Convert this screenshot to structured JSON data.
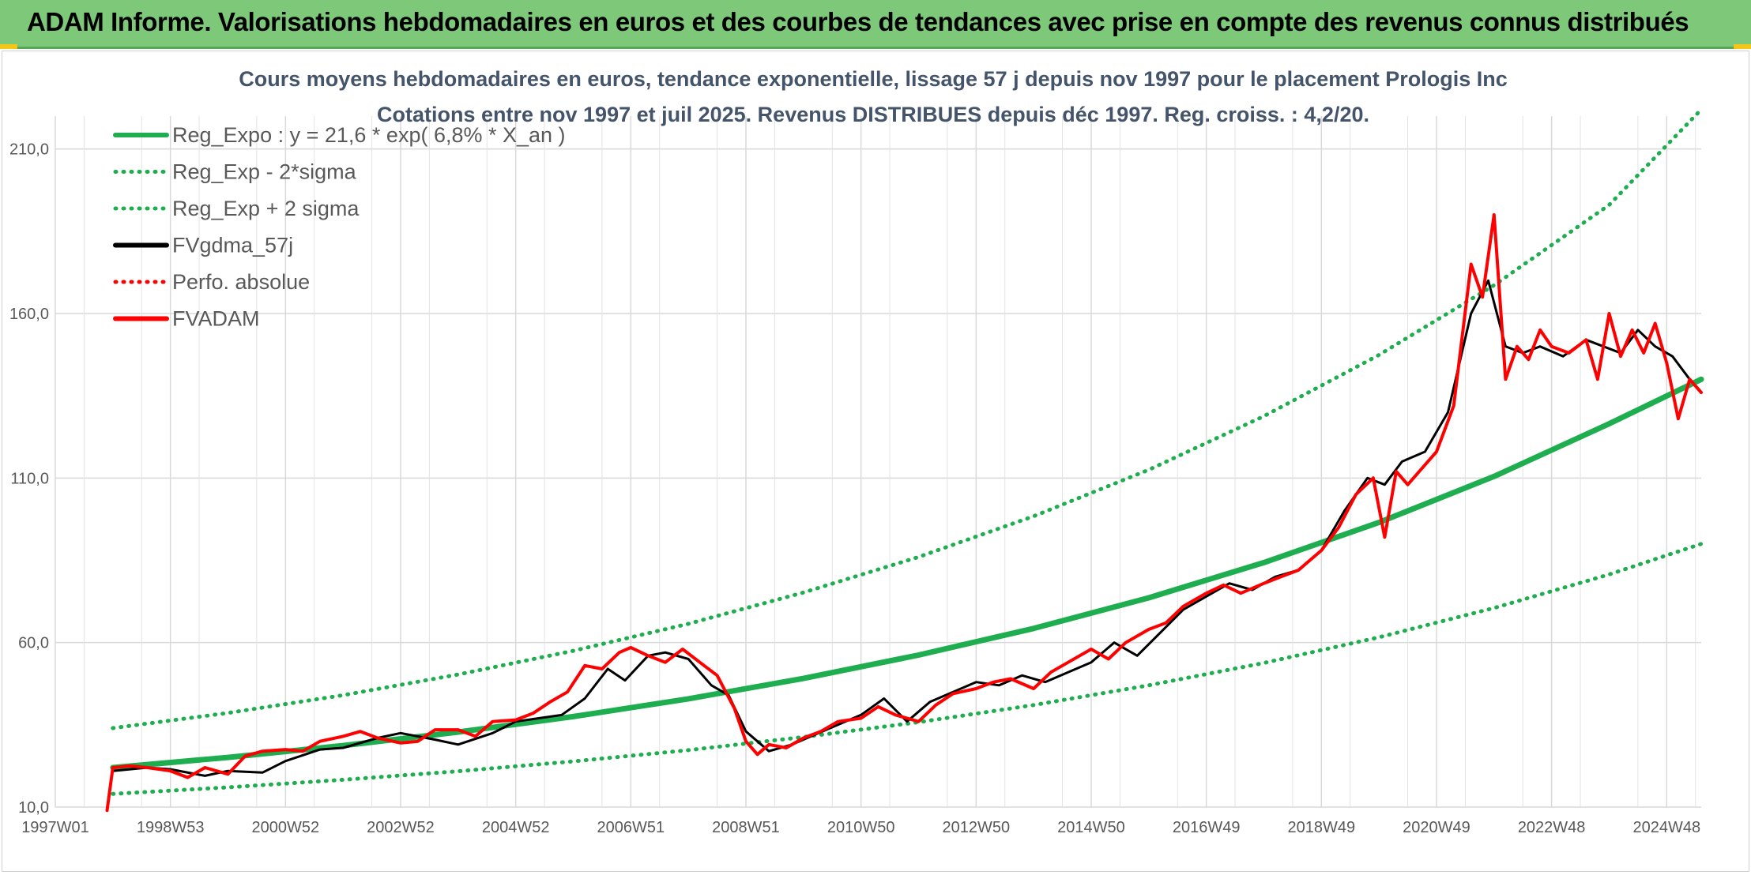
{
  "header": {
    "title": "ADAM Informe. Valorisations hebdomadaires en euros et des courbes de tendances avec prise en compte des revenus connus distribués"
  },
  "chart_data": {
    "type": "line",
    "title": "Cours moyens hebdomadaires en euros, tendance exponentielle, lissage 57 j depuis nov 1997 pour le placement Prologis Inc",
    "subtitle": "Cotations entre nov 1997 et juil 2025. Revenus DISTRIBUES depuis déc 1997. Reg. croiss. : 4,2/20.",
    "xlabel": "",
    "ylabel": "",
    "x_range": [
      1997.0,
      2025.6
    ],
    "ylim": [
      10,
      210
    ],
    "y_ticks": [
      "10,0",
      "60,0",
      "110,0",
      "160,0",
      "210,0"
    ],
    "x_ticks": [
      {
        "label": "1997W01",
        "x": 1997.0
      },
      {
        "label": "1998W53",
        "x": 1999.0
      },
      {
        "label": "2000W52",
        "x": 2001.0
      },
      {
        "label": "2002W52",
        "x": 2003.0
      },
      {
        "label": "2004W52",
        "x": 2005.0
      },
      {
        "label": "2006W51",
        "x": 2007.0
      },
      {
        "label": "2008W51",
        "x": 2009.0
      },
      {
        "label": "2010W50",
        "x": 2011.0
      },
      {
        "label": "2012W50",
        "x": 2013.0
      },
      {
        "label": "2014W50",
        "x": 2015.0
      },
      {
        "label": "2016W49",
        "x": 2017.0
      },
      {
        "label": "2018W49",
        "x": 2019.0
      },
      {
        "label": "2020W49",
        "x": 2021.0
      },
      {
        "label": "2022W48",
        "x": 2023.0
      },
      {
        "label": "2024W48",
        "x": 2025.0
      }
    ],
    "grid": true,
    "legend_position": "top-left",
    "series": [
      {
        "name": "Reg_Expo : y = 21,6 * exp( 6,8% *  X_an )",
        "color": "#1fae4f",
        "style": "solid",
        "x": [
          1998.0,
          2000.0,
          2002.0,
          2004.0,
          2006.0,
          2008.0,
          2010.0,
          2012.0,
          2014.0,
          2016.0,
          2018.0,
          2020.0,
          2022.0,
          2024.0,
          2025.6
        ],
        "values": [
          22.0,
          25.1,
          28.7,
          32.8,
          37.5,
          42.9,
          49.1,
          56.2,
          64.3,
          73.6,
          84.3,
          96.5,
          110.5,
          126.5,
          140.0
        ]
      },
      {
        "name": "Reg_Exp - 2*sigma",
        "color": "#1fae4f",
        "style": "dotted",
        "x": [
          1998.0,
          2000.0,
          2002.0,
          2004.0,
          2006.0,
          2008.0,
          2010.0,
          2012.0,
          2014.0,
          2016.0,
          2018.0,
          2020.0,
          2022.0,
          2024.0,
          2025.6
        ],
        "values": [
          14.0,
          16.0,
          18.3,
          20.9,
          23.9,
          27.3,
          31.3,
          35.8,
          41.0,
          47.0,
          53.8,
          61.6,
          70.5,
          80.7,
          90.0
        ]
      },
      {
        "name": "Reg_Exp + 2 sigma",
        "color": "#1fae4f",
        "style": "dotted",
        "x": [
          1998.0,
          2000.0,
          2002.0,
          2004.0,
          2006.0,
          2008.0,
          2010.0,
          2012.0,
          2014.0,
          2016.0,
          2018.0,
          2020.0,
          2022.0,
          2024.0,
          2025.6
        ],
        "values": [
          34.0,
          38.6,
          44.0,
          50.3,
          57.5,
          65.7,
          75.2,
          86.0,
          98.4,
          112.5,
          128.8,
          147.4,
          168.6,
          193.0,
          222.0
        ]
      },
      {
        "name": "FVgdma_57j",
        "color": "#000000",
        "style": "solid",
        "x": [
          1998.0,
          1998.6,
          1999.0,
          1999.6,
          2000.0,
          2000.6,
          2001.0,
          2001.6,
          2002.0,
          2002.6,
          2003.0,
          2003.6,
          2004.0,
          2004.6,
          2005.0,
          2005.4,
          2005.8,
          2006.2,
          2006.6,
          2006.9,
          2007.3,
          2007.6,
          2008.0,
          2008.4,
          2008.7,
          2009.0,
          2009.4,
          2009.8,
          2010.2,
          2010.6,
          2011.0,
          2011.4,
          2011.8,
          2012.2,
          2012.6,
          2013.0,
          2013.4,
          2013.8,
          2014.2,
          2014.6,
          2015.0,
          2015.4,
          2015.8,
          2016.2,
          2016.6,
          2017.0,
          2017.4,
          2017.8,
          2018.2,
          2018.6,
          2019.0,
          2019.4,
          2019.8,
          2020.1,
          2020.4,
          2020.8,
          2021.2,
          2021.6,
          2021.9,
          2022.2,
          2022.5,
          2022.8,
          2023.2,
          2023.6,
          2023.9,
          2024.2,
          2024.5,
          2024.8,
          2025.1,
          2025.4,
          2025.6
        ],
        "values": [
          21.0,
          22.0,
          21.5,
          19.5,
          21.0,
          20.5,
          24.0,
          27.5,
          28.0,
          31.0,
          32.5,
          30.5,
          29.0,
          32.5,
          36.0,
          37.0,
          38.0,
          43.0,
          52.0,
          48.5,
          56.0,
          57.0,
          55.0,
          47.0,
          44.0,
          33.0,
          27.0,
          29.0,
          32.0,
          35.0,
          38.0,
          43.0,
          36.0,
          42.0,
          45.0,
          48.0,
          47.0,
          50.0,
          48.0,
          51.0,
          54.0,
          60.0,
          56.0,
          63.0,
          70.0,
          74.0,
          78.0,
          76.0,
          80.0,
          82.0,
          88.0,
          100.0,
          110.0,
          108.0,
          115.0,
          118.0,
          130.0,
          160.0,
          170.0,
          150.0,
          148.0,
          150.0,
          147.0,
          152.0,
          150.0,
          148.0,
          155.0,
          150.0,
          147.0,
          140.0,
          136.0
        ]
      },
      {
        "name": "Perfo. absolue",
        "color": "#ff0000",
        "style": "dotted",
        "x": [],
        "values": []
      },
      {
        "name": "FVADAM",
        "color": "#ff0000",
        "style": "solid",
        "x": [
          1997.9,
          1998.0,
          1998.3,
          1998.6,
          1999.0,
          1999.3,
          1999.6,
          2000.0,
          2000.3,
          2000.6,
          2001.0,
          2001.3,
          2001.6,
          2002.0,
          2002.3,
          2002.6,
          2003.0,
          2003.3,
          2003.6,
          2004.0,
          2004.3,
          2004.6,
          2005.0,
          2005.3,
          2005.6,
          2005.9,
          2006.2,
          2006.5,
          2006.8,
          2007.0,
          2007.3,
          2007.6,
          2007.9,
          2008.2,
          2008.5,
          2008.8,
          2009.0,
          2009.2,
          2009.4,
          2009.7,
          2010.0,
          2010.3,
          2010.6,
          2011.0,
          2011.3,
          2011.6,
          2012.0,
          2012.3,
          2012.6,
          2013.0,
          2013.3,
          2013.6,
          2014.0,
          2014.3,
          2014.6,
          2015.0,
          2015.3,
          2015.6,
          2016.0,
          2016.3,
          2016.6,
          2017.0,
          2017.3,
          2017.6,
          2018.0,
          2018.3,
          2018.6,
          2019.0,
          2019.3,
          2019.6,
          2019.9,
          2020.1,
          2020.3,
          2020.5,
          2020.8,
          2021.0,
          2021.3,
          2021.6,
          2021.8,
          2022.0,
          2022.2,
          2022.4,
          2022.6,
          2022.8,
          2023.0,
          2023.3,
          2023.6,
          2023.8,
          2024.0,
          2024.2,
          2024.4,
          2024.6,
          2024.8,
          2025.0,
          2025.2,
          2025.4,
          2025.6
        ],
        "values": [
          9.0,
          22.0,
          22.5,
          22.0,
          21.0,
          19.0,
          22.0,
          20.0,
          25.5,
          27.0,
          27.5,
          27.0,
          30.0,
          31.5,
          33.0,
          31.0,
          29.5,
          30.0,
          33.5,
          33.5,
          31.5,
          36.0,
          36.5,
          38.5,
          42.0,
          45.0,
          53.0,
          52.0,
          57.0,
          58.5,
          56.0,
          54.0,
          58.0,
          54.0,
          50.0,
          40.0,
          30.0,
          26.0,
          29.0,
          28.0,
          31.0,
          33.0,
          36.0,
          37.0,
          40.5,
          38.0,
          36.0,
          41.0,
          44.5,
          46.0,
          48.0,
          49.0,
          46.0,
          51.0,
          54.0,
          58.0,
          55.0,
          60.0,
          64.0,
          66.0,
          71.0,
          75.0,
          77.5,
          75.0,
          78.0,
          80.0,
          82.0,
          88.0,
          95.0,
          105.0,
          110.0,
          92.0,
          112.0,
          108.0,
          114.0,
          118.0,
          132.0,
          175.0,
          165.0,
          190.0,
          140.0,
          150.0,
          146.0,
          155.0,
          150.0,
          148.0,
          152.0,
          140.0,
          160.0,
          147.0,
          155.0,
          148.0,
          157.0,
          145.0,
          128.0,
          140.0,
          136.0
        ]
      }
    ]
  }
}
